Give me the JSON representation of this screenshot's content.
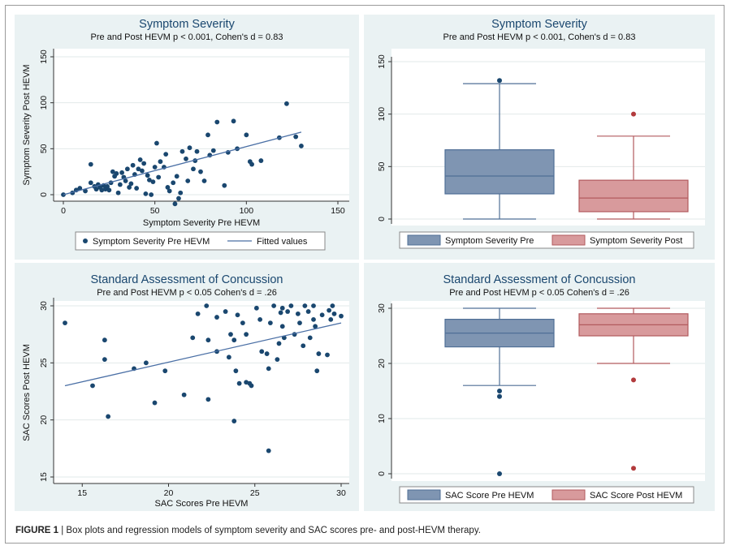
{
  "figure": {
    "caption_label": "FIGURE 1",
    "caption_text": " | Box plots and regression models of symptom severity and SAC scores pre- and post-HEVM therapy."
  },
  "colors": {
    "panel_bg": "#eaf2f3",
    "plot_bg": "#ffffff",
    "grid": "#e2e9ea",
    "navy": "#1a476f",
    "fit_line": "#4a6fa5",
    "box_pre": "#7f95b2",
    "box_pre_border": "#4f6f96",
    "box_post": "#d89a9c",
    "box_post_border": "#b25a5e",
    "outlier_post": "#b23a3c"
  },
  "chart_data": [
    {
      "id": "scatter_symptom",
      "type": "scatter",
      "title": "Symptom Severity",
      "subtitle": "Pre and Post HEVM p < 0.001, Cohen's d = 0.83",
      "xlabel": "Symptom Severity Pre HEVM",
      "ylabel": "Symptom Severity Post HEVM",
      "xlim": [
        0,
        150
      ],
      "ylim": [
        0,
        150
      ],
      "xticks": [
        0,
        50,
        100,
        150
      ],
      "yticks": [
        0,
        50,
        100,
        150
      ],
      "legend": [
        "Symptom Severity Pre HEVM",
        "Fitted values"
      ],
      "fit": {
        "x": [
          0,
          130
        ],
        "y": [
          0,
          68
        ]
      },
      "points": [
        [
          0,
          0
        ],
        [
          5,
          2
        ],
        [
          7,
          5
        ],
        [
          9,
          7
        ],
        [
          12,
          4
        ],
        [
          15,
          13
        ],
        [
          15,
          33
        ],
        [
          17,
          9
        ],
        [
          18,
          6
        ],
        [
          19,
          11
        ],
        [
          20,
          8
        ],
        [
          21,
          5
        ],
        [
          22,
          10
        ],
        [
          23,
          6
        ],
        [
          24,
          9
        ],
        [
          25,
          5
        ],
        [
          26,
          13
        ],
        [
          27,
          25
        ],
        [
          28,
          20
        ],
        [
          29,
          23
        ],
        [
          30,
          2
        ],
        [
          31,
          11
        ],
        [
          32,
          24
        ],
        [
          33,
          19
        ],
        [
          34,
          15
        ],
        [
          35,
          28
        ],
        [
          36,
          8
        ],
        [
          37,
          12
        ],
        [
          38,
          32
        ],
        [
          39,
          22
        ],
        [
          40,
          7
        ],
        [
          41,
          28
        ],
        [
          42,
          38
        ],
        [
          43,
          26
        ],
        [
          44,
          34
        ],
        [
          45,
          1
        ],
        [
          46,
          21
        ],
        [
          47,
          16
        ],
        [
          48,
          0
        ],
        [
          49,
          14
        ],
        [
          50,
          30
        ],
        [
          51,
          56
        ],
        [
          52,
          19
        ],
        [
          53,
          36
        ],
        [
          55,
          30
        ],
        [
          56,
          44
        ],
        [
          57,
          8
        ],
        [
          58,
          4
        ],
        [
          60,
          13
        ],
        [
          61,
          -10
        ],
        [
          62,
          20
        ],
        [
          63,
          -4
        ],
        [
          64,
          2
        ],
        [
          65,
          47
        ],
        [
          67,
          39
        ],
        [
          68,
          15
        ],
        [
          69,
          51
        ],
        [
          71,
          28
        ],
        [
          72,
          37
        ],
        [
          73,
          47
        ],
        [
          75,
          25
        ],
        [
          77,
          15
        ],
        [
          79,
          65
        ],
        [
          80,
          43
        ],
        [
          82,
          48
        ],
        [
          84,
          79
        ],
        [
          88,
          10
        ],
        [
          90,
          46
        ],
        [
          93,
          80
        ],
        [
          95,
          50
        ],
        [
          100,
          65
        ],
        [
          102,
          36
        ],
        [
          103,
          33
        ],
        [
          108,
          37
        ],
        [
          118,
          62
        ],
        [
          122,
          99
        ],
        [
          127,
          63
        ],
        [
          130,
          53
        ]
      ]
    },
    {
      "id": "box_symptom",
      "type": "box",
      "title": "Symptom Severity",
      "subtitle": "Pre and Post HEVM p < 0.001, Cohen's d = 0.83",
      "ylim": [
        0,
        150
      ],
      "yticks": [
        0,
        50,
        100,
        150
      ],
      "legend": [
        "Symptom Severity Pre",
        "Symptom Severity Post"
      ],
      "boxes": [
        {
          "name": "Symptom Severity Pre",
          "min": 0,
          "q1": 24,
          "median": 41,
          "q3": 66,
          "max": 129,
          "outliers": [
            132
          ]
        },
        {
          "name": "Symptom Severity Post",
          "min": 0,
          "q1": 7,
          "median": 20,
          "q3": 37,
          "max": 79,
          "outliers": [
            100
          ]
        }
      ]
    },
    {
      "id": "scatter_sac",
      "type": "scatter",
      "title": "Standard Assessment of Concussion",
      "subtitle": "Pre and Post HEVM p < 0.05 Cohen's d = .26",
      "xlabel": "SAC Scores  Pre HEVM",
      "ylabel": "SAC Scores Post HEVM",
      "xlim": [
        14,
        30
      ],
      "ylim": [
        15,
        30
      ],
      "xticks": [
        15,
        20,
        25,
        30
      ],
      "yticks": [
        15,
        20,
        25,
        30
      ],
      "fit": {
        "x": [
          14,
          30
        ],
        "y": [
          23,
          28.5
        ]
      },
      "points": [
        [
          14,
          28.5
        ],
        [
          15.6,
          23
        ],
        [
          16.3,
          27
        ],
        [
          16.3,
          25.3
        ],
        [
          16.5,
          20.3
        ],
        [
          18,
          24.5
        ],
        [
          18.7,
          25
        ],
        [
          19.2,
          21.5
        ],
        [
          19.8,
          24.3
        ],
        [
          20.9,
          22.2
        ],
        [
          21.4,
          27.2
        ],
        [
          21.7,
          29.3
        ],
        [
          22.2,
          30
        ],
        [
          22.3,
          27
        ],
        [
          22.3,
          21.8
        ],
        [
          22.8,
          29
        ],
        [
          22.8,
          26
        ],
        [
          23.3,
          29.5
        ],
        [
          23.5,
          25.5
        ],
        [
          23.6,
          27.5
        ],
        [
          23.8,
          19.9
        ],
        [
          23.8,
          27
        ],
        [
          23.9,
          24.3
        ],
        [
          24,
          29.2
        ],
        [
          24.1,
          23.2
        ],
        [
          24.3,
          28.5
        ],
        [
          24.5,
          23.3
        ],
        [
          24.5,
          27.5
        ],
        [
          24.7,
          23.2
        ],
        [
          24.8,
          23
        ],
        [
          25.1,
          29.8
        ],
        [
          25.3,
          28.8
        ],
        [
          25.4,
          26
        ],
        [
          25.7,
          25.8
        ],
        [
          25.8,
          24.5
        ],
        [
          25.8,
          17.3
        ],
        [
          25.9,
          28.5
        ],
        [
          26.1,
          30
        ],
        [
          26.3,
          25.3
        ],
        [
          26.4,
          26.7
        ],
        [
          26.5,
          29.4
        ],
        [
          26.6,
          29.8
        ],
        [
          26.6,
          28.2
        ],
        [
          26.7,
          27.2
        ],
        [
          26.9,
          29.5
        ],
        [
          27.1,
          30
        ],
        [
          27.3,
          27.5
        ],
        [
          27.5,
          29.3
        ],
        [
          27.6,
          28.5
        ],
        [
          27.8,
          26.5
        ],
        [
          27.9,
          30
        ],
        [
          28.1,
          29.5
        ],
        [
          28.2,
          27.2
        ],
        [
          28.4,
          28.8
        ],
        [
          28.4,
          30
        ],
        [
          28.5,
          28.2
        ],
        [
          28.6,
          24.3
        ],
        [
          28.7,
          25.8
        ],
        [
          28.9,
          29.2
        ],
        [
          29.2,
          25.7
        ],
        [
          29.3,
          29.6
        ],
        [
          29.4,
          28.8
        ],
        [
          29.5,
          30
        ],
        [
          29.6,
          29.3
        ],
        [
          30,
          29.1
        ]
      ]
    },
    {
      "id": "box_sac",
      "type": "box",
      "title": "Standard Assessment of Concussion",
      "subtitle": "Pre and Post HEVM p < 0.05 Cohen's d = .26",
      "ylim": [
        0,
        30
      ],
      "yticks": [
        0,
        10,
        20,
        30
      ],
      "legend": [
        "SAC Score Pre HEVM",
        "SAC Score Post HEVM"
      ],
      "boxes": [
        {
          "name": "SAC Score Pre HEVM",
          "min": 16,
          "q1": 23,
          "median": 25.5,
          "q3": 28,
          "max": 30,
          "outliers": [
            15,
            14,
            0
          ]
        },
        {
          "name": "SAC Score Post HEVM",
          "min": 20,
          "q1": 25,
          "median": 27,
          "q3": 29,
          "max": 30,
          "outliers": [
            17,
            1
          ]
        }
      ]
    }
  ]
}
